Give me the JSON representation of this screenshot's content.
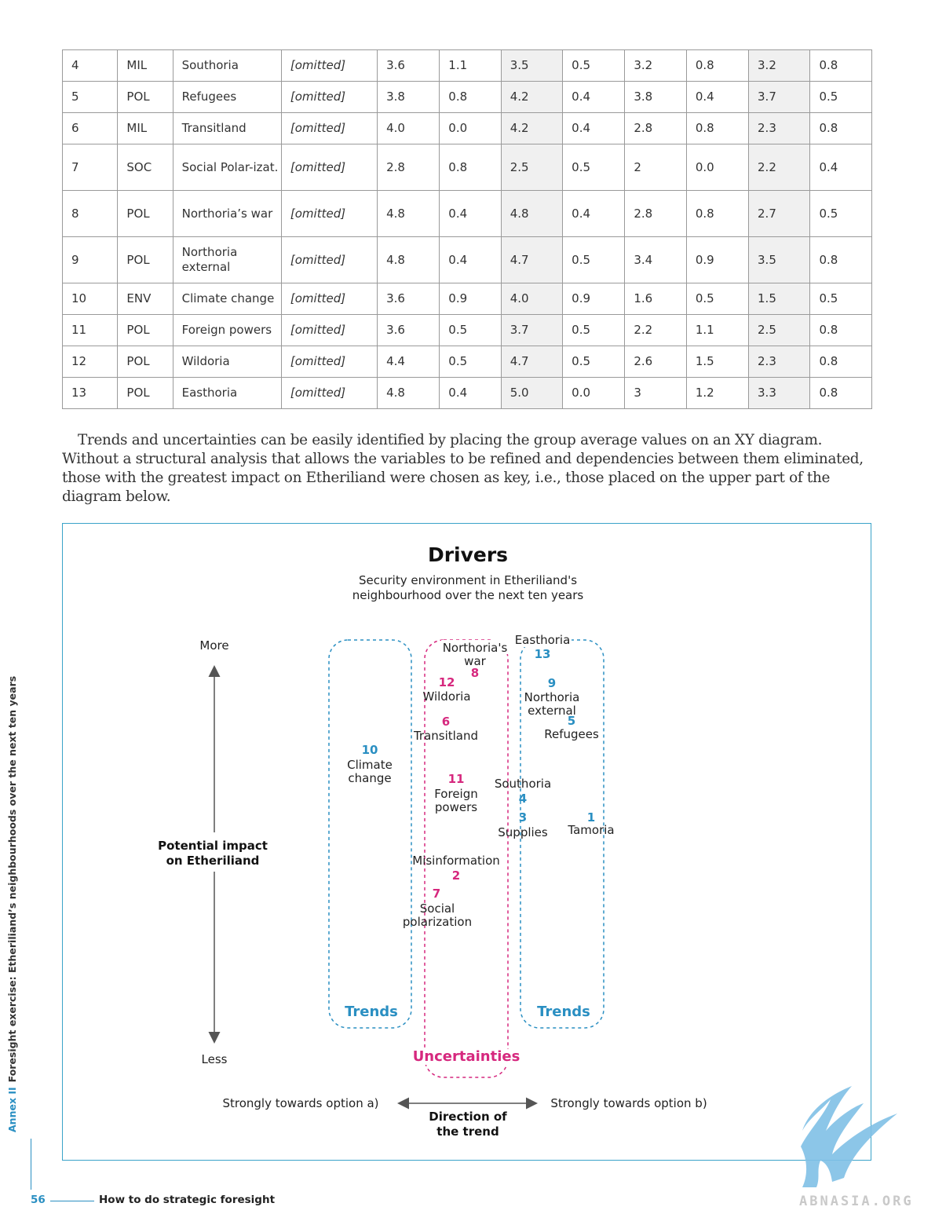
{
  "table": {
    "rows": [
      {
        "num": "4",
        "cat": "MIL",
        "name": "Southoria",
        "desc": "[omitted]",
        "v": [
          "3.6",
          "1.1",
          "3.5",
          "0.5",
          "3.2",
          "0.8",
          "3.2",
          "0.8"
        ]
      },
      {
        "num": "5",
        "cat": "POL",
        "name": "Refugees",
        "desc": "[omitted]",
        "v": [
          "3.8",
          "0.8",
          "4.2",
          "0.4",
          "3.8",
          "0.4",
          "3.7",
          "0.5"
        ]
      },
      {
        "num": "6",
        "cat": "MIL",
        "name": "Transitland",
        "desc": "[omitted]",
        "v": [
          "4.0",
          "0.0",
          "4.2",
          "0.4",
          "2.8",
          "0.8",
          "2.3",
          "0.8"
        ]
      },
      {
        "num": "7",
        "cat": "SOC",
        "name": "Social Polar-izat.",
        "desc": "[omitted]",
        "v": [
          "2.8",
          "0.8",
          "2.5",
          "0.5",
          "2",
          "0.0",
          "2.2",
          "0.4"
        ]
      },
      {
        "num": "8",
        "cat": "POL",
        "name": "Northoria’s war",
        "desc": "[omitted]",
        "v": [
          "4.8",
          "0.4",
          "4.8",
          "0.4",
          "2.8",
          "0.8",
          "2.7",
          "0.5"
        ]
      },
      {
        "num": "9",
        "cat": "POL",
        "name": "Northoria external",
        "desc": "[omitted]",
        "v": [
          "4.8",
          "0.4",
          "4.7",
          "0.5",
          "3.4",
          "0.9",
          "3.5",
          "0.8"
        ]
      },
      {
        "num": "10",
        "cat": "ENV",
        "name": "Climate change",
        "desc": "[omitted]",
        "v": [
          "3.6",
          "0.9",
          "4.0",
          "0.9",
          "1.6",
          "0.5",
          "1.5",
          "0.5"
        ]
      },
      {
        "num": "11",
        "cat": "POL",
        "name": "Foreign powers",
        "desc": "[omitted]",
        "v": [
          "3.6",
          "0.5",
          "3.7",
          "0.5",
          "2.2",
          "1.1",
          "2.5",
          "0.8"
        ]
      },
      {
        "num": "12",
        "cat": "POL",
        "name": "Wildoria",
        "desc": "[omitted]",
        "v": [
          "4.4",
          "0.5",
          "4.7",
          "0.5",
          "2.6",
          "1.5",
          "2.3",
          "0.8"
        ]
      },
      {
        "num": "13",
        "cat": "POL",
        "name": "Easthoria",
        "desc": "[omitted]",
        "v": [
          "4.8",
          "0.4",
          "5.0",
          "0.0",
          "3",
          "1.2",
          "3.3",
          "0.8"
        ]
      }
    ]
  },
  "paragraph": "Trends and uncertainties can be easily identified by placing the group average values on an XY diagram. Without a structural analysis that allows the variables to be refined and dependencies between them eliminated, those with the greatest impact on Etheriliand were chosen as key, i.e., those placed on the upper part of  the diagram below.",
  "diagram": {
    "title": "Drivers",
    "subtitle_line1": "Security environment in Etheriliand's",
    "subtitle_line2": "neighbourhood over the next ten years",
    "y_top": "More",
    "y_bottom": "Less",
    "y_label_line1": "Potential impact",
    "y_label_line2": "on Etheriliand",
    "x_left": "Strongly towards option a)",
    "x_right": "Strongly towards option b)",
    "x_label_line1": "Direction of",
    "x_label_line2": "the trend",
    "trends_left": "Trends",
    "trends_right": "Trends",
    "uncertainties": "Uncertainties",
    "colors": {
      "trend": "#2a8fc2",
      "uncertainty": "#d6287e",
      "arrow": "#555555",
      "frame": "#3aa3c9"
    },
    "drivers": [
      {
        "num": "13",
        "group": "trend",
        "label": [
          "Easthoria"
        ]
      },
      {
        "num": "8",
        "group": "uncertainty",
        "label": [
          "Northoria's",
          "war"
        ]
      },
      {
        "num": "12",
        "group": "uncertainty",
        "label": [
          "Wildoria"
        ]
      },
      {
        "num": "9",
        "group": "trend",
        "label": [
          "Northoria",
          "external"
        ]
      },
      {
        "num": "6",
        "group": "uncertainty",
        "label": [
          "Transitland"
        ]
      },
      {
        "num": "5",
        "group": "trend",
        "label": [
          "Refugees"
        ]
      },
      {
        "num": "10",
        "group": "trend",
        "label": [
          "Climate",
          "change"
        ]
      },
      {
        "num": "11",
        "group": "uncertainty",
        "label": [
          "Foreign",
          "powers"
        ]
      },
      {
        "num": "4",
        "group": "trend",
        "label": [
          "Southoria"
        ]
      },
      {
        "num": "3",
        "group": "trend",
        "label": [
          "Supplies"
        ]
      },
      {
        "num": "1",
        "group": "trend",
        "label": [
          "Tamoria"
        ]
      },
      {
        "num": "2",
        "group": "uncertainty",
        "label": [
          "Misinformation"
        ]
      },
      {
        "num": "7",
        "group": "uncertainty",
        "label": [
          "Social",
          "polarization"
        ]
      }
    ]
  },
  "sidebar": {
    "annex": "Annex II",
    "text": "Foresight exercise: Etheriliand’s neighbourhoods over the next ten years"
  },
  "footer": {
    "page": "56",
    "title": "How to do strategic foresight"
  },
  "watermark": "ABNASIA.ORG"
}
